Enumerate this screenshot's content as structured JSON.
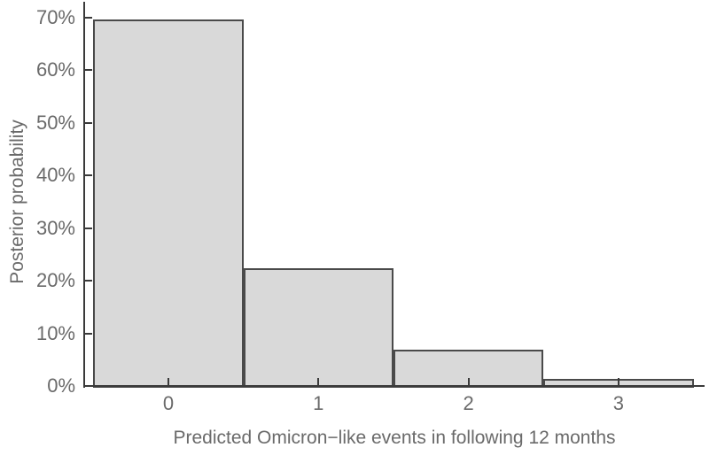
{
  "chart_data": {
    "type": "bar",
    "title": "",
    "categories": [
      "0",
      "1",
      "2",
      "3"
    ],
    "values": [
      69.6,
      22.4,
      6.9,
      1.4
    ],
    "xlabel": "Predicted Omicron−like events in following 12 months",
    "ylabel": "Posterior probability",
    "y_tick_labels": [
      "0%",
      "10%",
      "20%",
      "30%",
      "40%",
      "50%",
      "60%",
      "70%"
    ],
    "y_tick_values": [
      0,
      10,
      20,
      30,
      40,
      50,
      60,
      70
    ],
    "ylim": [
      0,
      70
    ],
    "grid": false,
    "legend": null,
    "colors": {
      "bar_fill": "#d9d9d9",
      "bar_border": "#4a4a4a",
      "axis": "#3a3a3a",
      "text": "#6a6a6a",
      "background": "#ffffff"
    }
  }
}
